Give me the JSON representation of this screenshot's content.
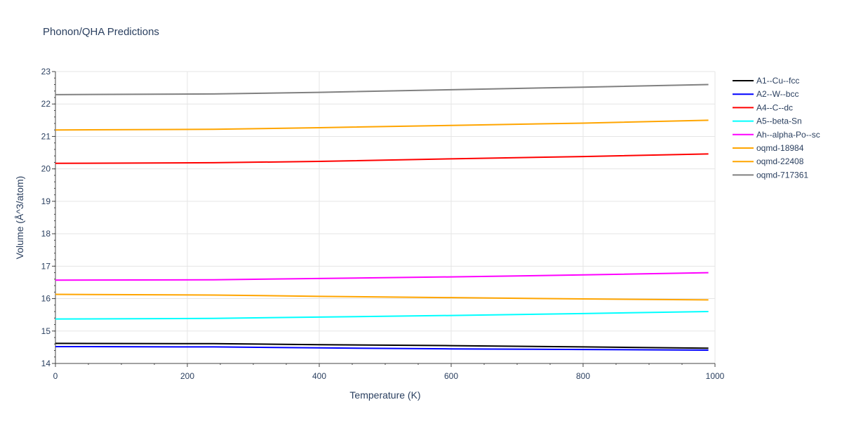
{
  "chart_data": {
    "type": "line",
    "title": "Phonon/QHA Predictions",
    "xlabel": "Temperature (K)",
    "ylabel": "Volume (Å^3/atom)",
    "xlim": [
      0,
      1000
    ],
    "ylim": [
      14,
      23
    ],
    "x_ticks": [
      "0",
      "200",
      "400",
      "600",
      "800",
      "1000"
    ],
    "y_ticks": [
      "14",
      "15",
      "16",
      "17",
      "18",
      "19",
      "20",
      "21",
      "22",
      "23"
    ],
    "grid": true,
    "legend_position": "right",
    "series": [
      {
        "name": "A1--Cu--fcc",
        "color": "#000000",
        "x": [
          0,
          240,
          400,
          600,
          800,
          990
        ],
        "y": [
          14.62,
          14.61,
          14.58,
          14.55,
          14.51,
          14.47
        ]
      },
      {
        "name": "A2--W--bcc",
        "color": "#0000ff",
        "x": [
          0,
          240,
          400,
          600,
          800,
          990
        ],
        "y": [
          14.52,
          14.51,
          14.48,
          14.45,
          14.43,
          14.41
        ]
      },
      {
        "name": "A4--C--dc",
        "color": "#ff0000",
        "x": [
          0,
          240,
          400,
          600,
          800,
          990
        ],
        "y": [
          20.17,
          20.19,
          20.23,
          20.31,
          20.38,
          20.46
        ]
      },
      {
        "name": "A5--beta-Sn",
        "color": "#00ffff",
        "x": [
          0,
          240,
          400,
          600,
          800,
          990
        ],
        "y": [
          15.37,
          15.39,
          15.43,
          15.48,
          15.54,
          15.6
        ]
      },
      {
        "name": "Ah--alpha-Po--sc",
        "color": "#ff00ff",
        "x": [
          0,
          240,
          400,
          600,
          800,
          990
        ],
        "y": [
          16.57,
          16.58,
          16.62,
          16.67,
          16.73,
          16.8
        ]
      },
      {
        "name": "oqmd-18984",
        "color": "#ffa500",
        "x": [
          0,
          240,
          400,
          600,
          800,
          990
        ],
        "y": [
          16.13,
          16.11,
          16.07,
          16.03,
          15.99,
          15.96
        ]
      },
      {
        "name": "oqmd-22408",
        "color": "#ffa500",
        "x": [
          0,
          240,
          400,
          600,
          800,
          990
        ],
        "y": [
          21.2,
          21.22,
          21.27,
          21.34,
          21.41,
          21.5
        ]
      },
      {
        "name": "oqmd-717361",
        "color": "#808080",
        "x": [
          0,
          240,
          400,
          600,
          800,
          990
        ],
        "y": [
          22.29,
          22.31,
          22.36,
          22.44,
          22.52,
          22.6
        ]
      }
    ]
  }
}
